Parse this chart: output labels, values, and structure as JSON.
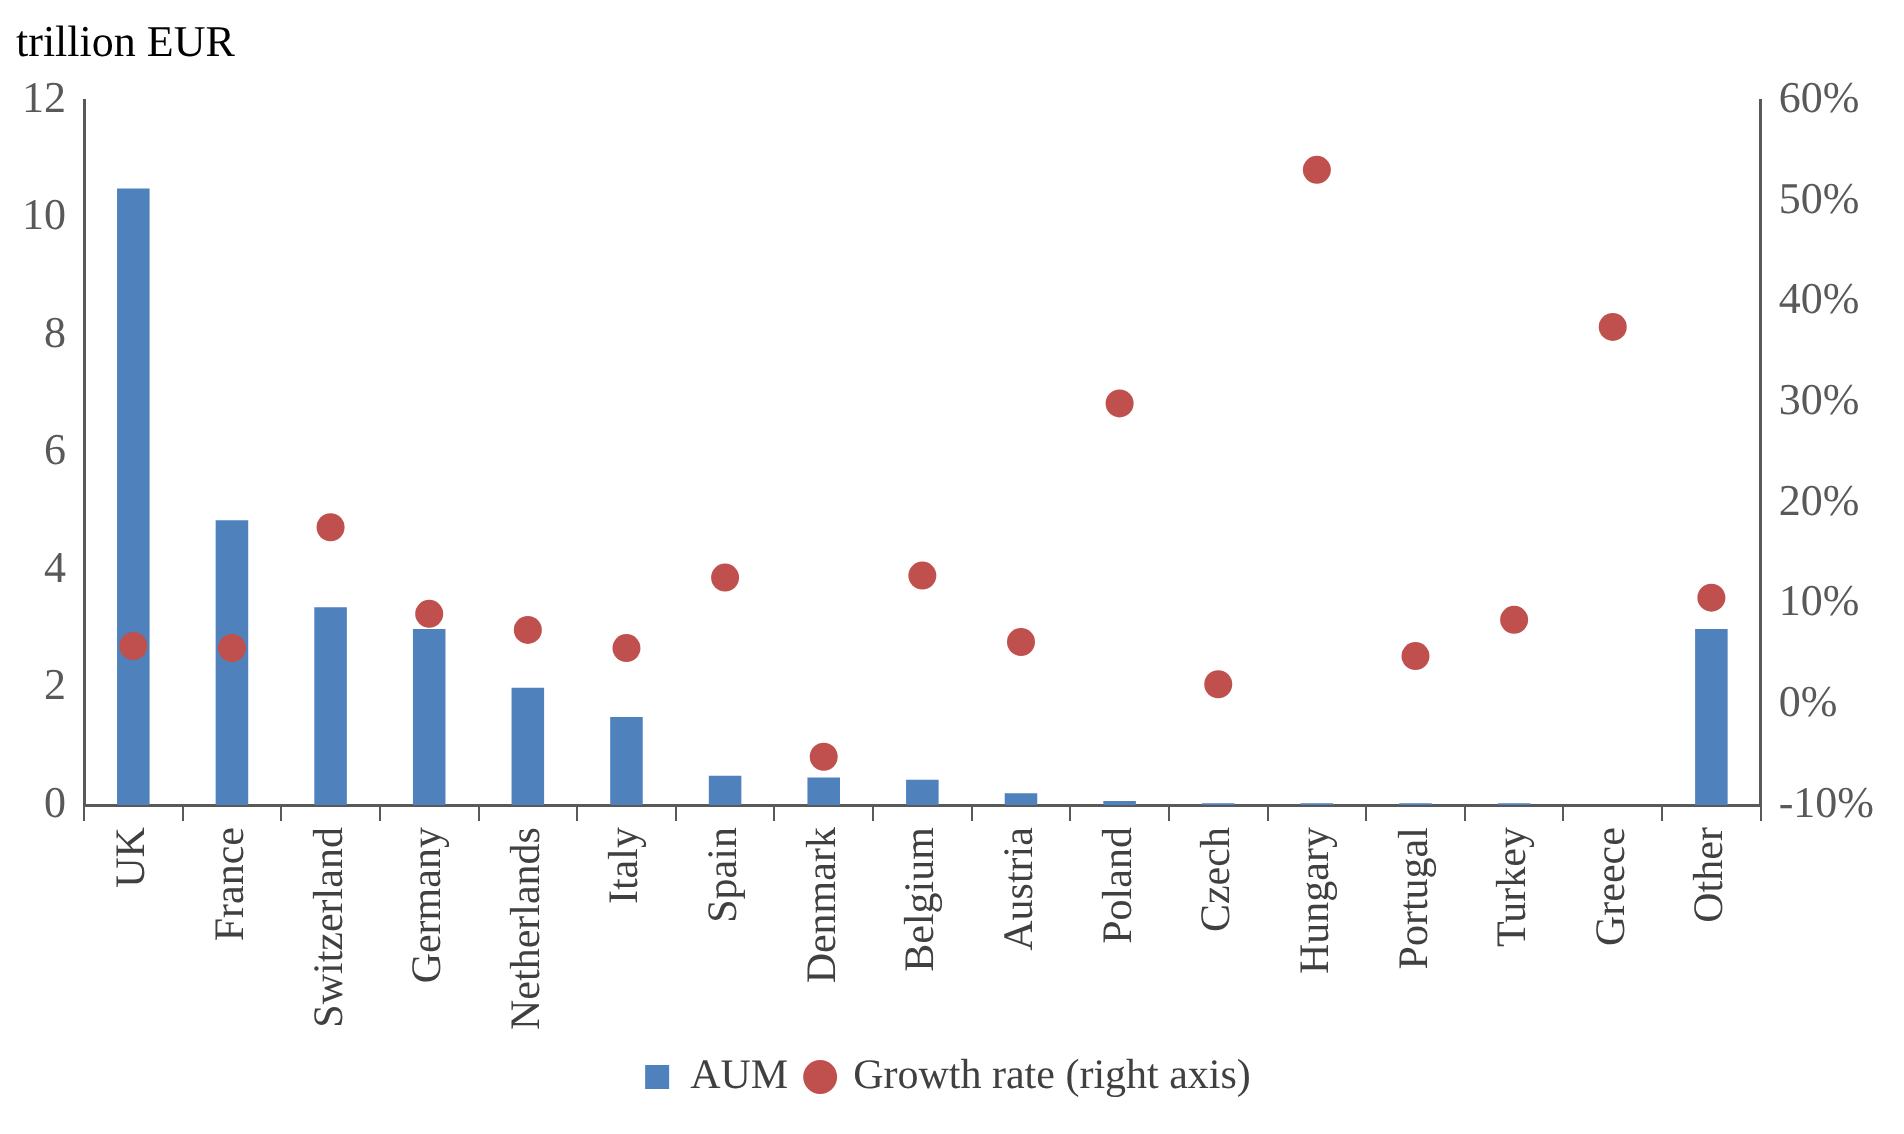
{
  "chart_data": {
    "type": "bar",
    "ylabel": "trillion EUR",
    "categories": [
      "UK",
      "France",
      "Switzerland",
      "Germany",
      "Netherlands",
      "Italy",
      "Spain",
      "Denmark",
      "Belgium",
      "Austria",
      "Poland",
      "Czech",
      "Hungary",
      "Portugal",
      "Turkey",
      "Greece",
      "Other"
    ],
    "series": [
      {
        "name": "AUM",
        "color": "#4f81bd",
        "values": [
          10.5,
          4.85,
          3.37,
          3.0,
          2.0,
          1.5,
          0.5,
          0.47,
          0.43,
          0.2,
          0.07,
          0.03,
          0.03,
          0.03,
          0.03,
          0,
          3.0
        ]
      },
      {
        "name": "Growth rate (right axis)",
        "type": "scatter",
        "axis": "y2",
        "color": "#c0504d",
        "marker": "circle",
        "values": [
          5.8,
          5.6,
          17.6,
          9.0,
          7.4,
          5.6,
          12.6,
          -5.2,
          12.8,
          6.2,
          29.9,
          2.0,
          53.1,
          4.8,
          8.4,
          37.5,
          10.6
        ]
      }
    ],
    "ylim": [
      0,
      12
    ],
    "yticks": [
      0,
      2,
      4,
      6,
      8,
      10,
      12
    ],
    "y2lim": [
      -10,
      60
    ],
    "y2ticks": [
      {
        "value": -10,
        "label": "-10%"
      },
      {
        "value": 0,
        "label": "0%"
      },
      {
        "value": 10,
        "label": "10%"
      },
      {
        "value": 20,
        "label": "20%"
      },
      {
        "value": 30,
        "label": "30%"
      },
      {
        "value": 40,
        "label": "40%"
      },
      {
        "value": 50,
        "label": "50%"
      },
      {
        "value": 60,
        "label": "60%"
      }
    ],
    "grid": false,
    "legend": "bottom"
  }
}
